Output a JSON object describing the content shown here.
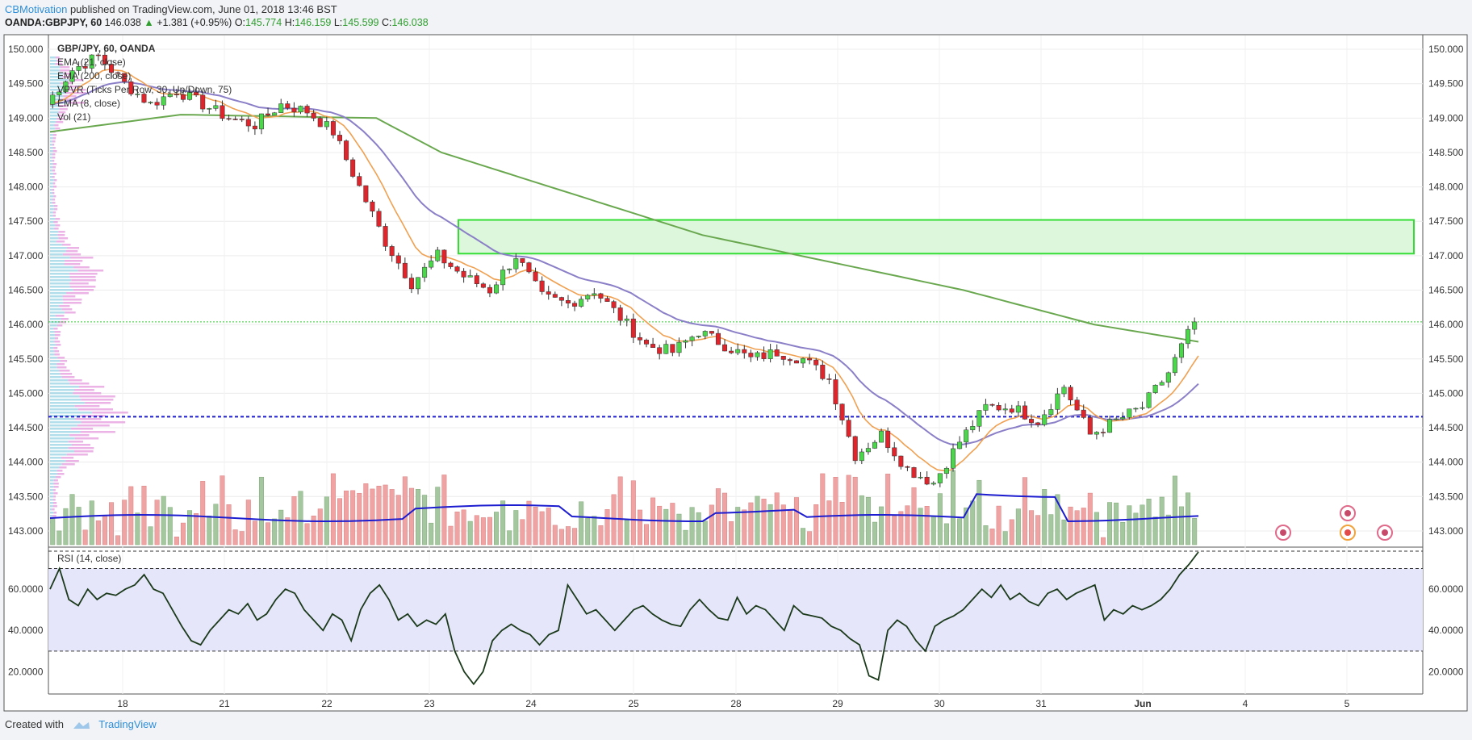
{
  "header": {
    "author": "CBMotivation",
    "published": "published on TradingView.com, June 01, 2018 13:46 BST",
    "symbol": "OANDA:GBPJPY, 60",
    "last": "146.038",
    "change_arrow": "▲",
    "change": "+1.381 (+0.95%)",
    "o_label": "O:",
    "o": "145.774",
    "h_label": "H:",
    "h": "146.159",
    "l_label": "L:",
    "l": "145.599",
    "c_label": "C:",
    "c": "146.038"
  },
  "legend": {
    "title": "GBP/JPY, 60, OANDA",
    "items": [
      "EMA (21, close)",
      "EMA (200, close)",
      "VPVR (Ticks Per Row, 30, Up/Down, 75)",
      "EMA (8, close)",
      "Vol (21)"
    ]
  },
  "rsi_label": "RSI (14, close)",
  "footer": {
    "created": "Created with",
    "brand": "TradingView"
  },
  "colors": {
    "up": "#4cd64c",
    "down": "#e0242b",
    "ema21": "#f0a050",
    "ema200": "#6aa84f",
    "ema8": "#8b7fc8",
    "vol_ma": "#1c1cd0",
    "support": "#1c1cd0",
    "zone_fill": "#dcf7dc",
    "zone_stroke": "#33dd33",
    "rsi_line": "#1b3a1b",
    "rsi_band": "#e6e6fa"
  },
  "chart_data": {
    "type": "candlestick",
    "symbol": "GBP/JPY",
    "interval": "60",
    "price_ticks": [
      "150.000",
      "149.500",
      "149.000",
      "148.500",
      "148.000",
      "147.500",
      "147.000",
      "146.500",
      "146.000",
      "145.500",
      "145.000",
      "144.500",
      "144.000",
      "143.500",
      "143.000"
    ],
    "ylim": [
      142.8,
      150.2
    ],
    "x_ticks": [
      "18",
      "21",
      "22",
      "23",
      "24",
      "25",
      "28",
      "29",
      "30",
      "31",
      "Jun",
      "4",
      "5"
    ],
    "current_price": 146.038,
    "resistance_zone": [
      147.03,
      147.52
    ],
    "support_level": 144.66,
    "price_path": [
      [
        0,
        149.2
      ],
      [
        4,
        149.7
      ],
      [
        8,
        149.9
      ],
      [
        12,
        149.5
      ],
      [
        16,
        149.2
      ],
      [
        20,
        149.4
      ],
      [
        24,
        149.2
      ],
      [
        28,
        149.0
      ],
      [
        32,
        148.9
      ],
      [
        36,
        149.2
      ],
      [
        40,
        149.1
      ],
      [
        44,
        148.8
      ],
      [
        48,
        148.0
      ],
      [
        52,
        147.2
      ],
      [
        56,
        146.6
      ],
      [
        60,
        147.0
      ],
      [
        64,
        146.7
      ],
      [
        68,
        146.5
      ],
      [
        72,
        147.0
      ],
      [
        76,
        146.4
      ],
      [
        80,
        146.3
      ],
      [
        84,
        146.5
      ],
      [
        88,
        146.1
      ],
      [
        92,
        145.7
      ],
      [
        96,
        145.6
      ],
      [
        100,
        145.9
      ],
      [
        104,
        145.7
      ],
      [
        108,
        145.5
      ],
      [
        112,
        145.6
      ],
      [
        116,
        145.5
      ],
      [
        120,
        145.2
      ],
      [
        124,
        144.1
      ],
      [
        128,
        144.4
      ],
      [
        132,
        143.9
      ],
      [
        136,
        143.7
      ],
      [
        140,
        144.3
      ],
      [
        144,
        144.8
      ],
      [
        148,
        144.8
      ],
      [
        152,
        144.6
      ],
      [
        156,
        145.1
      ],
      [
        160,
        144.4
      ],
      [
        164,
        144.6
      ],
      [
        168,
        144.8
      ],
      [
        172,
        145.3
      ],
      [
        176,
        146.04
      ]
    ],
    "ema200_path": [
      [
        0,
        148.8
      ],
      [
        20,
        149.05
      ],
      [
        50,
        149.0
      ],
      [
        60,
        148.5
      ],
      [
        80,
        147.9
      ],
      [
        100,
        147.3
      ],
      [
        120,
        146.9
      ],
      [
        140,
        146.5
      ],
      [
        160,
        146.0
      ],
      [
        176,
        145.75
      ]
    ],
    "volume_scale": [
      0,
      1
    ],
    "vol_ma_level": [
      0.25,
      0.27
    ],
    "rsi": {
      "levels": [
        "60.0000",
        "40.0000",
        "20.0000"
      ],
      "overbought": 70,
      "oversold": 30,
      "ylim": [
        10,
        78
      ],
      "values": [
        60,
        70,
        55,
        52,
        60,
        55,
        58,
        57,
        60,
        62,
        67,
        60,
        58,
        50,
        42,
        35,
        33,
        40,
        45,
        50,
        48,
        53,
        45,
        48,
        55,
        60,
        58,
        50,
        45,
        40,
        48,
        45,
        35,
        50,
        58,
        62,
        55,
        45,
        48,
        42,
        45,
        43,
        48,
        30,
        20,
        14,
        20,
        35,
        40,
        43,
        40,
        38,
        33,
        38,
        40,
        62,
        55,
        48,
        50,
        45,
        40,
        45,
        50,
        52,
        48,
        45,
        43,
        42,
        50,
        55,
        50,
        46,
        45,
        56,
        48,
        52,
        50,
        45,
        40,
        52,
        48,
        47,
        46,
        42,
        40,
        36,
        33,
        18,
        16,
        40,
        45,
        42,
        35,
        30,
        42,
        45,
        47,
        50,
        55,
        60,
        56,
        62,
        55,
        58,
        54,
        52,
        58,
        60,
        55,
        58,
        60,
        62,
        45,
        50,
        48,
        52,
        50,
        52,
        55,
        60,
        67,
        72,
        78
      ]
    }
  }
}
